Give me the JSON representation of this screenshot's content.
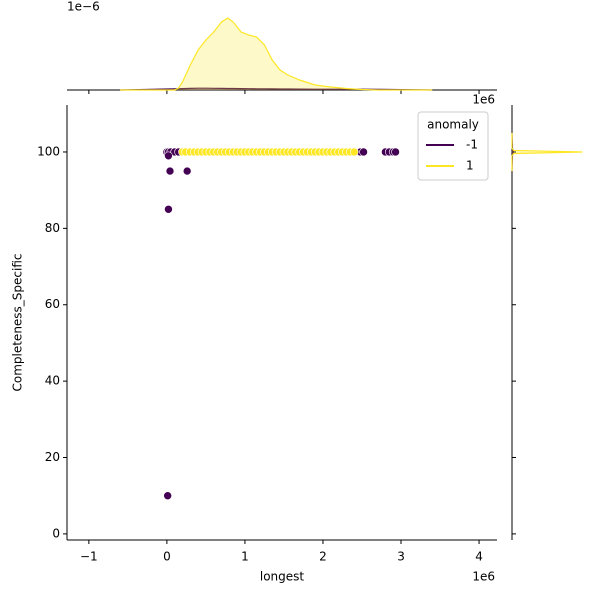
{
  "chart_data": [
    {
      "type": "scatter",
      "x_label": "longest",
      "y_label": "Completeness_Specific",
      "x_offset": "1e6",
      "legend_title": "anomaly",
      "legend": "upper right",
      "xlim": [
        -1.28,
        4.23
      ],
      "ylim": [
        -1.6,
        112.3
      ],
      "xticks": [
        {
          "value": -1,
          "label": "−1"
        },
        0,
        1,
        2,
        3,
        4
      ],
      "yticks": [
        0,
        20,
        40,
        60,
        80,
        100
      ],
      "series": [
        {
          "name": "-1",
          "color": "#440154",
          "x": [
            0,
            0.02,
            0.05,
            0.1,
            0.15,
            0.02,
            0.04,
            0.26,
            0.02,
            0.01,
            2.48,
            2.52,
            2.8,
            2.85,
            2.9,
            2.93
          ],
          "values": [
            100,
            100,
            100,
            100,
            100,
            99,
            95,
            95,
            85,
            10,
            100,
            100,
            100,
            100,
            100,
            100
          ]
        },
        {
          "name": "1",
          "color": "#fde725",
          "x": [
            0.2,
            0.24,
            0.3,
            0.35,
            0.4,
            0.45,
            0.5,
            0.55,
            0.6,
            0.65,
            0.7,
            0.75,
            0.8,
            0.85,
            0.9,
            0.95,
            1.0,
            1.05,
            1.1,
            1.15,
            1.2,
            1.25,
            1.3,
            1.35,
            1.4,
            1.45,
            1.5,
            1.55,
            1.6,
            1.65,
            1.7,
            1.75,
            1.8,
            1.85,
            1.9,
            1.95,
            2.0,
            2.05,
            2.1,
            2.15,
            2.2,
            2.25,
            2.3,
            2.35,
            2.4
          ],
          "values": [
            100,
            100,
            100,
            100,
            100,
            100,
            100,
            100,
            100,
            100,
            100,
            100,
            100,
            100,
            100,
            100,
            100,
            100,
            100,
            100,
            100,
            100,
            100,
            100,
            100,
            100,
            100,
            100,
            100,
            100,
            100,
            100,
            100,
            100,
            100,
            100,
            100,
            100,
            100,
            100,
            100,
            100,
            100,
            100,
            100
          ]
        }
      ]
    },
    {
      "type": "kde",
      "orientation": "vertical",
      "x_offset": "1e6",
      "y_offset": "1e−6",
      "xlim": [
        -1.28,
        4.23
      ],
      "ylim": [
        0,
        0.9
      ],
      "xticks": [
        -1,
        0,
        1,
        2,
        3,
        4
      ],
      "x": [
        -0.6,
        -0.2,
        0.1,
        0.15,
        0.2,
        0.3,
        0.4,
        0.5,
        0.6,
        0.7,
        0.78,
        0.85,
        0.95,
        1.05,
        1.15,
        1.25,
        1.35,
        1.45,
        1.55,
        1.7,
        1.9,
        2.1,
        2.3,
        2.5,
        2.7,
        3.0,
        3.4
      ],
      "series": [
        {
          "name": "-1",
          "color": "#440154",
          "values": [
            0,
            0.006,
            0.012,
            0.013,
            0.014,
            0.016,
            0.018,
            0.018,
            0.017,
            0.016,
            0.015,
            0.015,
            0.014,
            0.013,
            0.012,
            0.012,
            0.011,
            0.01,
            0.01,
            0.009,
            0.008,
            0.008,
            0.008,
            0.008,
            0.007,
            0.004,
            0
          ]
        },
        {
          "name": "1",
          "color": "#fde725",
          "values": [
            0,
            0,
            0,
            0.02,
            0.08,
            0.25,
            0.4,
            0.5,
            0.58,
            0.68,
            0.72,
            0.68,
            0.58,
            0.55,
            0.53,
            0.45,
            0.3,
            0.2,
            0.15,
            0.1,
            0.05,
            0.03,
            0.015,
            0.005,
            0,
            0,
            0
          ]
        }
      ]
    },
    {
      "type": "kde",
      "orientation": "horizontal",
      "xlim": [
        -1.6,
        112.3
      ],
      "ylim": [
        0,
        1
      ],
      "xticks": [
        0,
        20,
        40,
        60,
        80,
        100
      ],
      "x": [
        95,
        99,
        99.6,
        100,
        100.4,
        101,
        105
      ],
      "series": [
        {
          "name": "-1",
          "color": "#440154",
          "values": [
            0,
            0.005,
            0.01,
            0.02,
            0.01,
            0.005,
            0
          ]
        },
        {
          "name": "1",
          "color": "#fde725",
          "values": [
            0,
            0,
            0.02,
            0.8,
            0.02,
            0,
            0
          ]
        }
      ]
    }
  ]
}
